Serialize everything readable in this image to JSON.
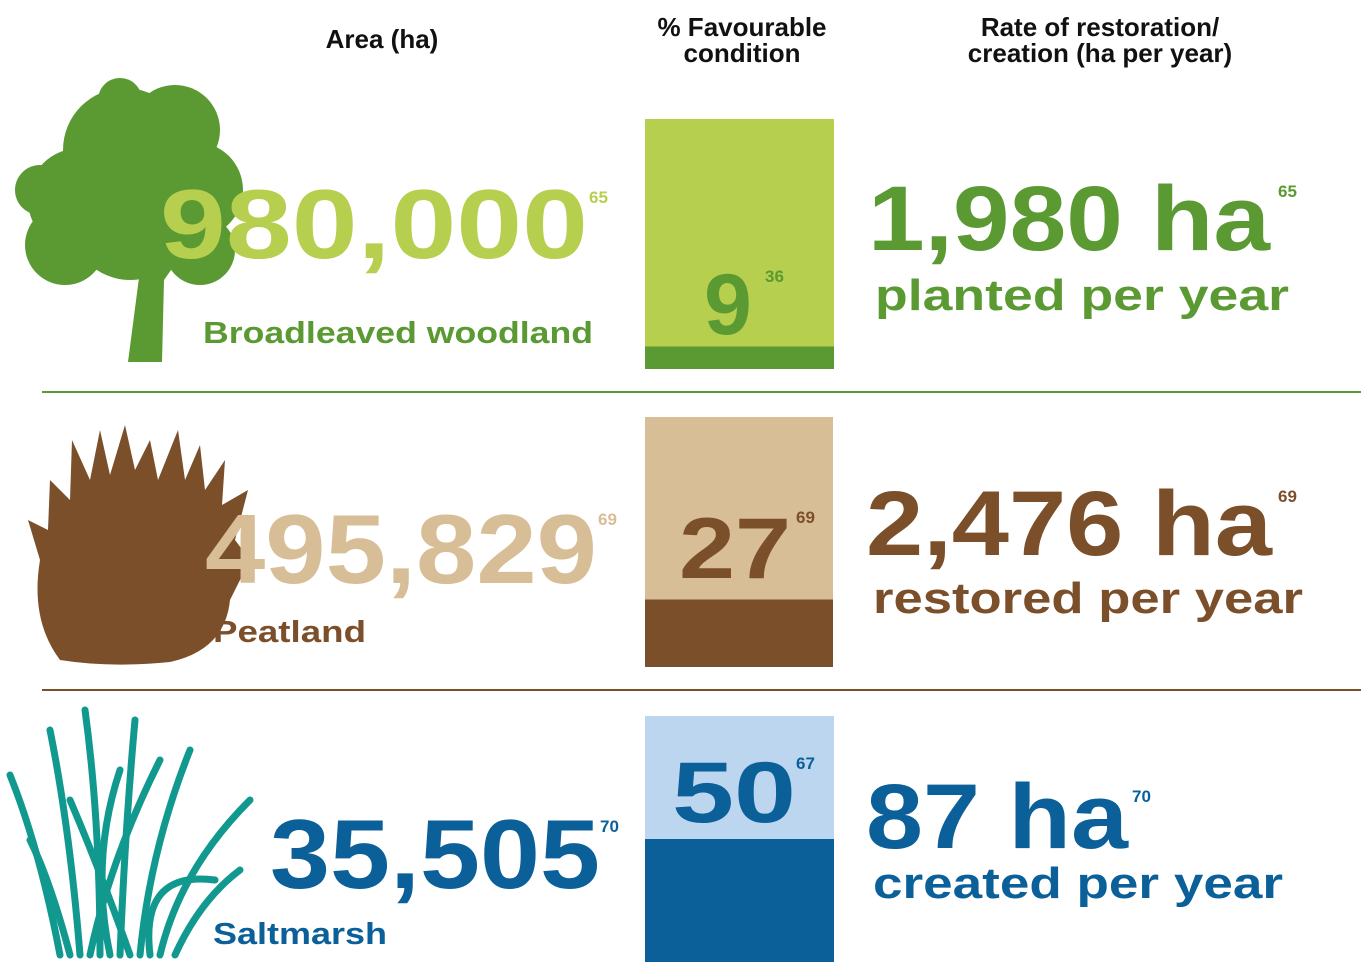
{
  "header": {
    "area": "Area (ha)",
    "condition": [
      "% Favourable",
      "condition"
    ],
    "rate": [
      "Rate of restoration/",
      "creation (ha per year)"
    ]
  },
  "rows": [
    {
      "habitat": "Broadleaved woodland",
      "area": "980,000",
      "area_ref": "65",
      "condition": 9,
      "condition_ref": "36",
      "rate": "1,980 ha",
      "rate_ref": "65",
      "rate_note": "planted per year"
    },
    {
      "habitat": "Peatland",
      "area": "495,829",
      "area_ref": "69",
      "condition": 27,
      "condition_ref": "69",
      "rate": "2,476 ha",
      "rate_ref": "69",
      "rate_note": "restored per year"
    },
    {
      "habitat": "Saltmarsh",
      "area": "35,505",
      "area_ref": "70",
      "condition": 50,
      "condition_ref": "67",
      "rate": "87 ha",
      "rate_ref": "70",
      "rate_note": "created per year"
    }
  ]
}
